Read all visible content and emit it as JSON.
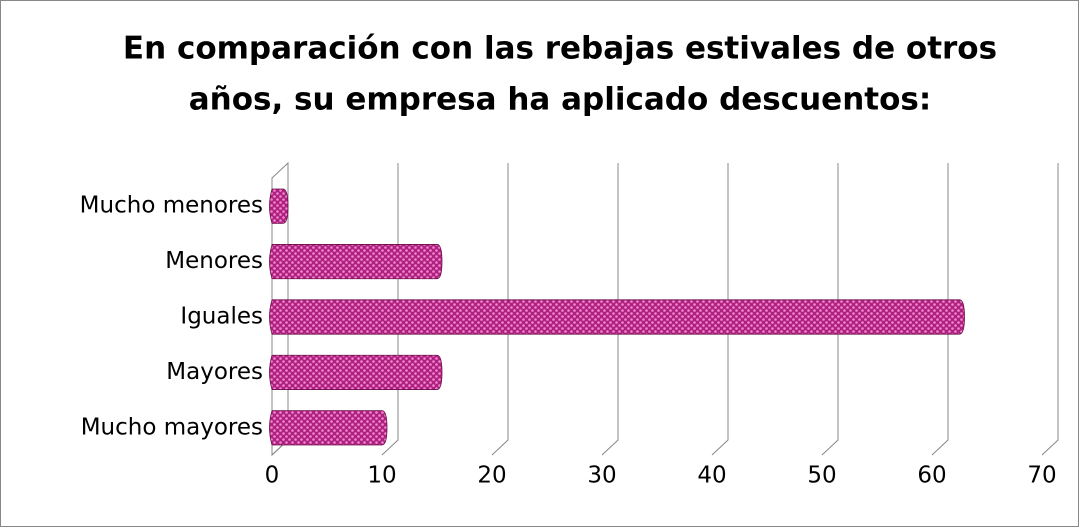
{
  "chart_data": {
    "type": "bar",
    "orientation": "horizontal",
    "title": [
      "En comparación con las rebajas estivales de otros",
      "años, su empresa ha aplicado descuentos:"
    ],
    "categories": [
      "Mucho menores",
      "Menores",
      "Iguales",
      "Mayores",
      "Mucho mayores"
    ],
    "values": [
      1,
      15,
      62.5,
      15,
      10
    ],
    "color": "#c0308f",
    "xlim": [
      0,
      70
    ],
    "xticks": [
      0,
      10,
      20,
      30,
      40,
      50,
      60,
      70
    ],
    "grid": true
  }
}
